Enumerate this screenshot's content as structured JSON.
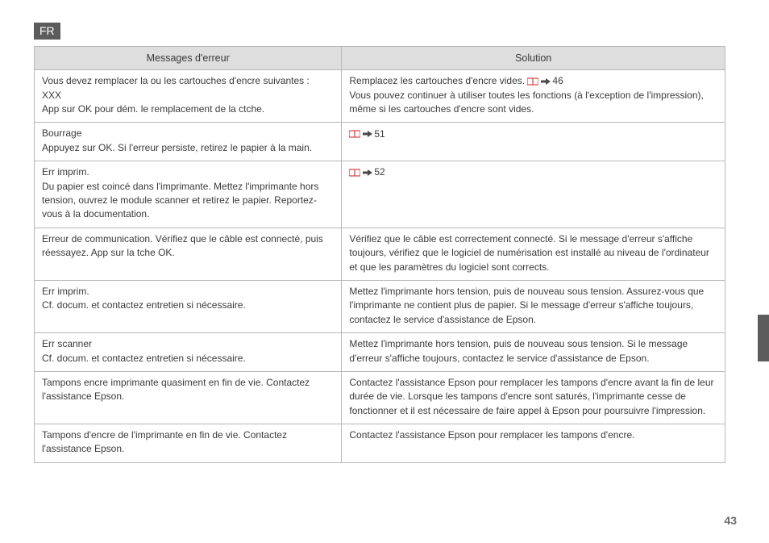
{
  "lang_badge": "FR",
  "page_number": "43",
  "table": {
    "headers": {
      "left": "Messages d'erreur",
      "right": "Solution"
    },
    "rows": [
      {
        "left": [
          "Vous devez remplacer la ou les cartouches d'encre suivantes :",
          "XXX",
          "App sur OK pour dém. le remplacement de la ctche."
        ],
        "right_pre": "Remplacez les cartouches d'encre vides. ",
        "right_ref": "46",
        "right_post": [
          "Vous pouvez continuer à utiliser toutes les fonctions (à l'exception de l'impression), même si les cartouches d'encre sont vides."
        ]
      },
      {
        "left": [
          "Bourrage",
          "Appuyez sur OK. Si l'erreur persiste, retirez le papier à la main."
        ],
        "right_ref_only": "51"
      },
      {
        "left": [
          "Err imprim.",
          "Du papier est coincé dans l'imprimante. Mettez l'imprimante hors tension, ouvrez le module scanner et retirez le papier. Reportez-vous à la documentation."
        ],
        "right_ref_only": "52"
      },
      {
        "left": [
          "Erreur de communication. Vérifiez que le câble est connecté, puis réessayez. App sur la tche OK."
        ],
        "right": [
          "Vérifiez que le câble est correctement connecté. Si le message d'erreur s'affiche toujours, vérifiez que le logiciel de numérisation est installé au niveau de l'ordinateur et que les paramètres du logiciel sont corrects."
        ]
      },
      {
        "left": [
          "Err imprim.",
          "Cf. docum. et contactez entretien si nécessaire."
        ],
        "right": [
          "Mettez l'imprimante hors tension, puis de nouveau sous tension. Assurez-vous que l'imprimante ne contient plus de papier. Si le message d'erreur s'affiche toujours, contactez le service d'assistance de Epson."
        ]
      },
      {
        "left": [
          "Err scanner",
          "Cf. docum. et contactez entretien si nécessaire."
        ],
        "right": [
          "Mettez l'imprimante hors tension, puis de nouveau sous tension. Si le message d'erreur s'affiche toujours, contactez le service d'assistance de Epson."
        ]
      },
      {
        "left": [
          "Tampons encre imprimante quasiment en fin de vie. Contactez l'assistance Epson."
        ],
        "right": [
          "Contactez l'assistance Epson pour remplacer les tampons d'encre avant la fin de leur durée de vie. Lorsque les tampons d'encre sont saturés, l'imprimante cesse de fonctionner et il est nécessaire de faire appel à Epson pour poursuivre l'impression."
        ]
      },
      {
        "left": [
          "Tampons d'encre de l'imprimante en fin de vie. Contactez l'assistance Epson."
        ],
        "right": [
          "Contactez l'assistance Epson pour remplacer les tampons d'encre."
        ]
      }
    ]
  },
  "icons": {
    "book_color": "#d8494b",
    "arrow_color": "#4a4a4a"
  }
}
